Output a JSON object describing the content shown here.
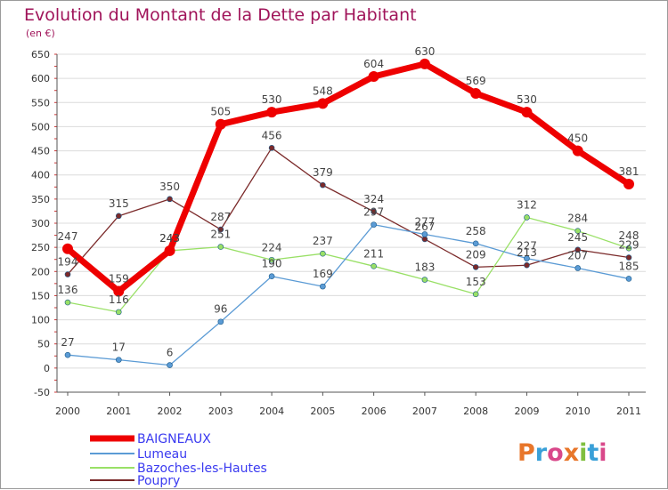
{
  "title": "Evolution du Montant de la Dette par Habitant",
  "subtitle": "(en €)",
  "logo": "Proxiti",
  "chart_data": {
    "type": "line",
    "title": "Evolution du Montant de la Dette par Habitant",
    "subtitle": "(en €)",
    "xlabel": "",
    "ylabel": "",
    "x": [
      "2000",
      "2001",
      "2002",
      "2003",
      "2004",
      "2005",
      "2006",
      "2007",
      "2008",
      "2009",
      "2010",
      "2011"
    ],
    "ylim": [
      -50,
      650
    ],
    "yticks": [
      -50,
      0,
      50,
      100,
      150,
      200,
      250,
      300,
      350,
      400,
      450,
      500,
      550,
      600,
      650
    ],
    "grid": true,
    "legend_position": "bottom-left",
    "series": [
      {
        "name": "BAIGNEAUX",
        "color": "#ee0000",
        "values": [
          247,
          159,
          243,
          505,
          530,
          548,
          604,
          630,
          569,
          530,
          450,
          381
        ]
      },
      {
        "name": "Lumeau",
        "color": "#5b9bd5",
        "values": [
          27,
          17,
          6,
          96,
          190,
          169,
          297,
          277,
          258,
          227,
          207,
          185
        ]
      },
      {
        "name": "Bazoches-les-Hautes",
        "color": "#99e066",
        "values": [
          136,
          116,
          243,
          251,
          224,
          237,
          211,
          183,
          153,
          312,
          284,
          248
        ]
      },
      {
        "name": "Poupry",
        "color": "#7b2a2a",
        "values": [
          194,
          315,
          350,
          287,
          456,
          379,
          324,
          267,
          209,
          213,
          245,
          229
        ]
      }
    ]
  }
}
